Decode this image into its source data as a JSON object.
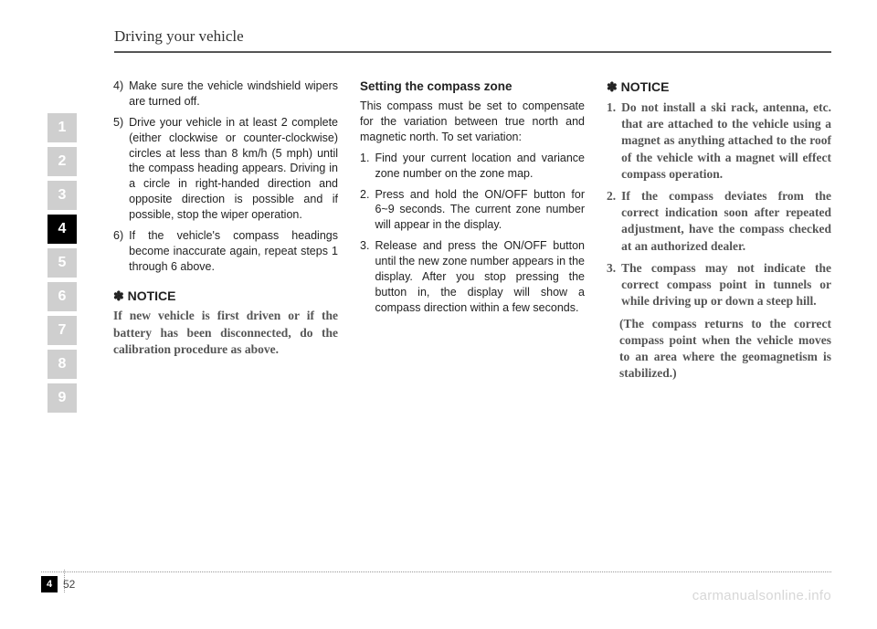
{
  "header": {
    "title": "Driving your vehicle"
  },
  "tabs": [
    "1",
    "2",
    "3",
    "4",
    "5",
    "6",
    "7",
    "8",
    "9"
  ],
  "active_tab_index": 3,
  "col1": {
    "items": [
      {
        "n": "4)",
        "t": "Make sure the vehicle windshield wipers are turned off."
      },
      {
        "n": "5)",
        "t": "Drive your vehicle in at least 2 complete (either clockwise or counter-clockwise) circles at less than 8 km/h (5 mph) until the compass heading appears. Driving in a circle in right-handed direction and opposite direction is possible and if possible, stop the wiper operation."
      },
      {
        "n": "6)",
        "t": "If the vehicle's compass headings become inaccurate again, repeat steps 1 through 6 above."
      }
    ],
    "notice_hd": "✽ NOTICE",
    "notice_txt": "If new vehicle is first driven or if the battery has been disconnected, do the calibration procedure as above."
  },
  "col2": {
    "sub_hd": "Setting the compass zone",
    "intro": "This compass must be set to compensate for the variation between true north and magnetic north. To set variation:",
    "items": [
      {
        "n": "1.",
        "t": "Find your current location and variance zone number on the zone map."
      },
      {
        "n": "2.",
        "t": "Press and hold the ON/OFF button for 6~9 seconds. The current zone number will appear in the display."
      },
      {
        "n": "3.",
        "t": "Release and press the ON/OFF button until the new zone number appears in the display. After you stop pressing the button in, the display will show a compass direction within a few seconds."
      }
    ]
  },
  "col3": {
    "notice_hd": "✽ NOTICE",
    "items": [
      {
        "n": "1.",
        "t": "Do not install a ski rack, antenna, etc. that are attached to the vehicle using a magnet as anything attached to the roof of the vehicle with a magnet will effect compass operation."
      },
      {
        "n": "2.",
        "t": "If the compass deviates from the correct indication soon after repeated adjustment, have the compass checked at an authorized dealer."
      },
      {
        "n": "3.",
        "t": "The compass may not indicate the correct compass point in tunnels or while driving up or down a steep hill."
      }
    ],
    "paren": "(The compass returns to the correct compass point when the vehicle moves to an area where the geomagnetism is stabilized.)"
  },
  "footer": {
    "chapter": "4",
    "page": "52"
  },
  "watermark": "carmanualsonline.info"
}
